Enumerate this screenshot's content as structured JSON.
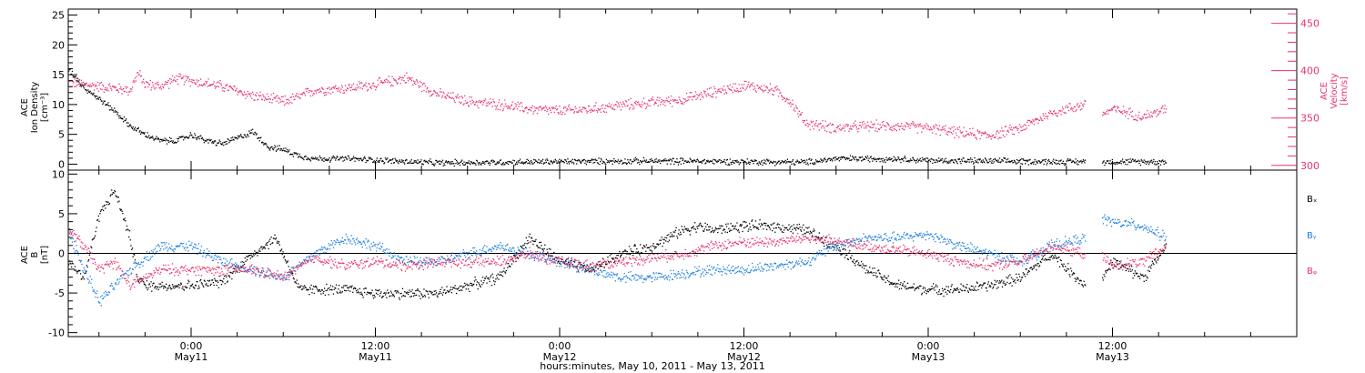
{
  "colors": {
    "axis": "#000000",
    "density": "#000000",
    "velocity": "#e8336a",
    "bx": "#000000",
    "by": "#1e7fe0",
    "bz": "#e8336a"
  },
  "xaxis": {
    "title": "hours:minutes, May 10, 2011 - May 13, 2011",
    "ticks": [
      {
        "hour": 24,
        "time": "0:00",
        "day": "May11"
      },
      {
        "hour": 36,
        "time": "12:00",
        "day": "May11"
      },
      {
        "hour": 48,
        "time": "0:00",
        "day": "May12"
      },
      {
        "hour": 60,
        "time": "12:00",
        "day": "May12"
      },
      {
        "hour": 72,
        "time": "0:00",
        "day": "May13"
      },
      {
        "hour": 84,
        "time": "12:00",
        "day": "May13"
      }
    ]
  },
  "chart_data": [
    {
      "type": "scatter",
      "panel": "top",
      "ylabel_left": [
        "ACE",
        "Ion Density",
        "[cm⁻³]"
      ],
      "ylabel_right": [
        "ACE",
        "Velocity",
        "[km/s]"
      ],
      "xlim_hours": [
        16,
        96
      ],
      "ylim": [
        -1,
        26
      ],
      "yticks": [
        0,
        5,
        10,
        15,
        20,
        25
      ],
      "ylim_right": [
        295,
        465
      ],
      "yticks_right": [
        300,
        350,
        400,
        450
      ],
      "gaps_hours": [
        [
          82.2,
          83.3
        ]
      ],
      "series": [
        {
          "key": "density",
          "x": [
            16.0,
            17.0,
            18.0,
            19.0,
            20.0,
            21.0,
            22.0,
            23.0,
            24.0,
            25.0,
            26.0,
            27.0,
            28.0,
            29.0,
            30.0,
            31.0,
            32.0,
            34.0,
            36.0,
            38.0,
            40.0,
            44.0,
            48.0,
            52.0,
            56.0,
            60.0,
            64.0,
            66.0,
            70.0,
            72.0,
            76.0,
            80.0,
            82.2,
            83.3,
            86.0,
            87.5
          ],
          "y": [
            16,
            13,
            11,
            9,
            6.5,
            5,
            4,
            4,
            5,
            4,
            3.5,
            4.5,
            5.5,
            3,
            2.5,
            1.5,
            1,
            1,
            0.8,
            0.5,
            0.3,
            0.4,
            0.5,
            0.6,
            0.6,
            0.5,
            0.4,
            1,
            1,
            0.7,
            0.6,
            0.5,
            0.5,
            0.5,
            0.5,
            0.5
          ]
        },
        {
          "key": "velocity",
          "x": [
            16.0,
            18.0,
            20.0,
            20.5,
            21.0,
            22.0,
            23.0,
            24.0,
            26.0,
            28.0,
            30.0,
            31.0,
            32.0,
            34.0,
            36.0,
            38.0,
            40.0,
            42.0,
            44.0,
            46.0,
            48.0,
            50.0,
            52.0,
            54.0,
            56.0,
            58.0,
            60.0,
            62.0,
            63.0,
            64.0,
            66.0,
            68.0,
            70.0,
            72.0,
            74.0,
            76.0,
            78.0,
            80.0,
            82.2,
            83.3,
            84.0,
            86.0,
            87.5
          ],
          "y": [
            388,
            384,
            380,
            398,
            386,
            384,
            392,
            390,
            384,
            374,
            368,
            373,
            380,
            382,
            386,
            393,
            376,
            368,
            365,
            360,
            358,
            360,
            364,
            367,
            370,
            378,
            385,
            380,
            368,
            345,
            340,
            342,
            342,
            340,
            335,
            332,
            340,
            356,
            365,
            355,
            360,
            352,
            360
          ]
        }
      ]
    },
    {
      "type": "scatter",
      "panel": "bottom",
      "ylabel_left": [
        "ACE",
        "B",
        "[nT]"
      ],
      "xlim_hours": [
        16,
        96
      ],
      "ylim": [
        -10.5,
        10.5
      ],
      "yticks": [
        -10,
        -5,
        0,
        5,
        10
      ],
      "zero_line": true,
      "gaps_hours": [
        [
          82.2,
          83.3
        ]
      ],
      "series": [
        {
          "name": "Bₓ",
          "key": "bx",
          "x": [
            16.0,
            17.0,
            18.0,
            19.0,
            20.0,
            20.5,
            21.0,
            22.0,
            24.0,
            26.0,
            28.0,
            29.5,
            31.0,
            32.0,
            34.0,
            36.0,
            38.0,
            40.0,
            42.0,
            44.0,
            46.0,
            48.0,
            50.0,
            52.0,
            54.0,
            56.0,
            57.0,
            58.0,
            60.0,
            62.0,
            64.0,
            66.0,
            68.0,
            70.0,
            72.0,
            74.0,
            76.0,
            78.0,
            80.0,
            82.2,
            83.3,
            84.0,
            86.0,
            87.5
          ],
          "y": [
            -1,
            -3,
            5,
            8,
            2,
            -3,
            -4,
            -4,
            -4,
            -3.5,
            0,
            2,
            -4.5,
            -4.5,
            -4.5,
            -5,
            -5,
            -5,
            -4,
            -3,
            2,
            -1,
            -2,
            0,
            1,
            3,
            3.5,
            3,
            3.5,
            3.5,
            3,
            1,
            -2,
            -4,
            -4.5,
            -4.5,
            -4,
            -3,
            0,
            -4,
            -3,
            -1,
            -3,
            1
          ]
        },
        {
          "name": "Bᵧ",
          "key": "by",
          "x": [
            16.0,
            17.0,
            18.0,
            20.0,
            22.0,
            24.0,
            26.0,
            28.0,
            30.0,
            32.0,
            34.0,
            36.0,
            38.0,
            40.0,
            42.0,
            44.0,
            46.0,
            48.0,
            50.0,
            52.0,
            54.0,
            56.0,
            58.0,
            60.0,
            62.0,
            64.0,
            66.0,
            68.0,
            70.0,
            72.0,
            74.0,
            76.0,
            78.0,
            80.0,
            82.2,
            83.3,
            84.0,
            86.0,
            87.5
          ],
          "y": [
            3,
            -2,
            -6,
            -2,
            1,
            1,
            -1,
            -2,
            -3,
            0,
            2,
            1,
            -1,
            -1,
            0,
            1,
            0,
            -1,
            -2,
            -3,
            -3,
            -2.5,
            -2,
            -2,
            -1.5,
            -1,
            1,
            2,
            2,
            2.5,
            1,
            0,
            -1,
            1,
            2,
            4.5,
            4,
            3.5,
            2
          ]
        },
        {
          "name": "Bᵩ",
          "key": "bz",
          "x": [
            16.0,
            17.0,
            18.0,
            19.0,
            20.0,
            22.0,
            24.0,
            26.0,
            28.0,
            30.0,
            32.0,
            34.0,
            36.0,
            38.0,
            40.0,
            42.0,
            44.0,
            46.0,
            48.0,
            50.0,
            52.0,
            54.0,
            56.0,
            58.0,
            60.0,
            62.0,
            64.0,
            66.0,
            68.0,
            70.0,
            72.0,
            74.0,
            76.0,
            78.0,
            80.0,
            82.2,
            83.3,
            84.0,
            86.0,
            87.5
          ],
          "y": [
            3,
            1,
            -2,
            -1,
            -4,
            -2,
            -2,
            -2,
            -2,
            -3,
            -0.5,
            -1.5,
            -1,
            -1.5,
            -1,
            -1,
            -1,
            0,
            -1,
            -1.5,
            -1,
            -0.5,
            0,
            1,
            1.5,
            1.5,
            2,
            1.5,
            1,
            0.5,
            0,
            -1,
            -1.5,
            -1,
            1,
            0,
            -0.5,
            -1.5,
            -1,
            1
          ]
        }
      ]
    }
  ]
}
